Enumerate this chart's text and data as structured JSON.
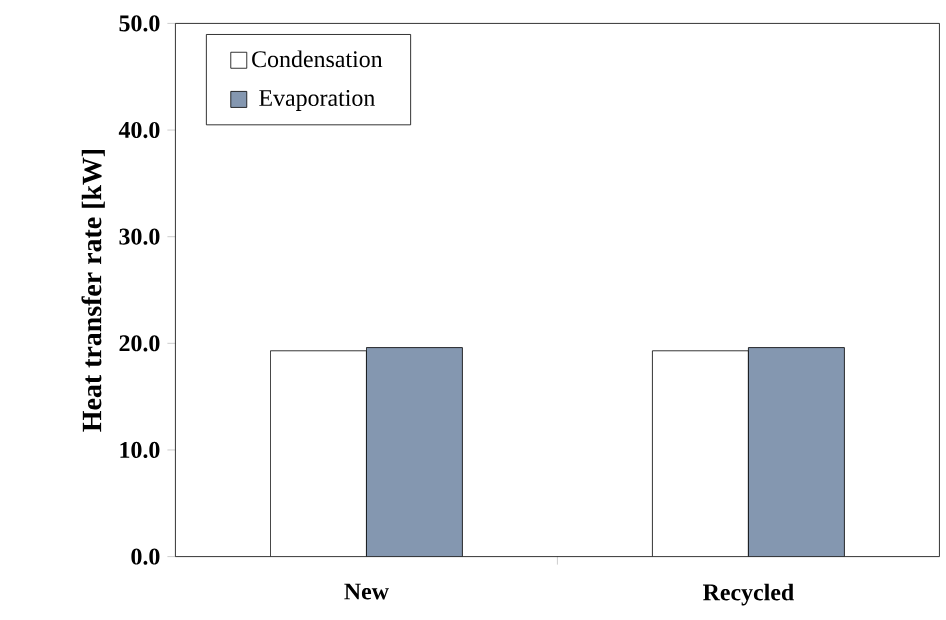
{
  "chart_data": {
    "type": "bar",
    "ylabel": "Heat transfer rate [kW]",
    "categories": [
      "New",
      "Recycled"
    ],
    "series": [
      {
        "name": "Condensation",
        "color": "#ffffff",
        "values": [
          19.3,
          19.3
        ]
      },
      {
        "name": "Evaporation",
        "color": "#8497b0",
        "values": [
          19.6,
          19.6
        ]
      }
    ],
    "ylim": [
      0,
      50
    ],
    "yticks": [
      {
        "value": 0,
        "label": "0.0"
      },
      {
        "value": 10,
        "label": "10.0"
      },
      {
        "value": 20,
        "label": "20.0"
      },
      {
        "value": 30,
        "label": "30.0"
      },
      {
        "value": 40,
        "label": "40.0"
      },
      {
        "value": 50,
        "label": "50.0"
      }
    ],
    "grid": false,
    "legend": "top left"
  }
}
